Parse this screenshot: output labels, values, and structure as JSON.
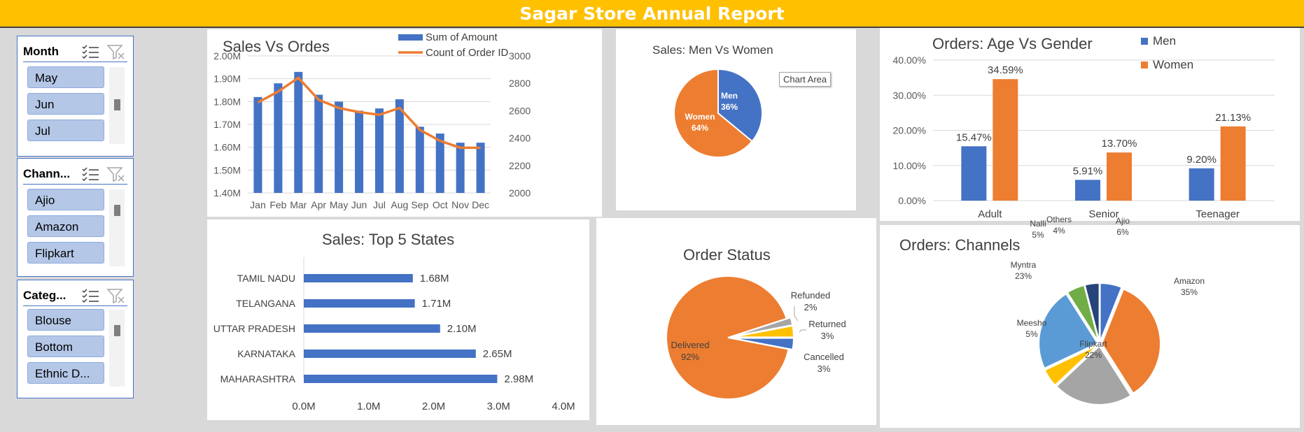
{
  "report_title": "Sagar Store Annual Report",
  "slicers": [
    {
      "label": "Month",
      "items": [
        "May",
        "Jun",
        "Jul"
      ]
    },
    {
      "label": "Chann...",
      "items": [
        "Ajio",
        "Amazon",
        "Flipkart"
      ]
    },
    {
      "label": "Categ...",
      "items": [
        "Blouse",
        "Bottom",
        "Ethnic D..."
      ]
    }
  ],
  "tooltip_text": "Chart Area",
  "colors": {
    "blue": "#4472c4",
    "orange": "#ed7d31",
    "gray": "#a5a5a5",
    "yellow": "#ffc000",
    "lightblue": "#5b9bd5",
    "green": "#70ad47",
    "navy": "#264478",
    "title_bar": "#ffc000"
  },
  "chart_data": [
    {
      "id": "sales_vs_orders",
      "type": "bar+line",
      "title": "Sales Vs Ordes",
      "categories": [
        "Jan",
        "Feb",
        "Mar",
        "Apr",
        "May",
        "Jun",
        "Jul",
        "Aug",
        "Sep",
        "Oct",
        "Nov",
        "Dec"
      ],
      "series": [
        {
          "name": "Sum of Amount",
          "type": "bar",
          "axis": "left",
          "values": [
            1.82,
            1.88,
            1.93,
            1.83,
            1.8,
            1.76,
            1.77,
            1.81,
            1.69,
            1.66,
            1.62,
            1.62
          ]
        },
        {
          "name": "Count of Order ID",
          "type": "line",
          "axis": "right",
          "values": [
            2660,
            2740,
            2840,
            2680,
            2620,
            2590,
            2570,
            2620,
            2460,
            2380,
            2330,
            2330
          ]
        }
      ],
      "left_axis": {
        "min": 1.4,
        "max": 2.0,
        "ticks": [
          "1.40M",
          "1.50M",
          "1.60M",
          "1.70M",
          "1.80M",
          "1.90M",
          "2.00M"
        ]
      },
      "right_axis": {
        "min": 2000,
        "max": 3000,
        "ticks": [
          "2000",
          "2200",
          "2400",
          "2600",
          "2800",
          "3000"
        ]
      },
      "legend": "top"
    },
    {
      "id": "men_vs_women",
      "type": "pie",
      "title": "Sales: Men Vs Women",
      "slices": [
        {
          "label": "Men",
          "value": 36,
          "display": "36%"
        },
        {
          "label": "Women",
          "value": 64,
          "display": "64%"
        }
      ]
    },
    {
      "id": "age_vs_gender",
      "type": "bar",
      "title": "Orders: Age Vs Gender",
      "categories": [
        "Adult",
        "Senior",
        "Teenager"
      ],
      "series": [
        {
          "name": "Men",
          "values": [
            15.47,
            5.91,
            9.2
          ],
          "labels": [
            "15.47%",
            "5.91%",
            "9.20%"
          ]
        },
        {
          "name": "Women",
          "values": [
            34.59,
            13.7,
            21.13
          ],
          "labels": [
            "34.59%",
            "13.70%",
            "21.13%"
          ]
        }
      ],
      "ylim": [
        0,
        40
      ],
      "yticks": [
        "0.00%",
        "10.00%",
        "20.00%",
        "30.00%",
        "40.00%"
      ],
      "legend": "top-right"
    },
    {
      "id": "top_states",
      "type": "bar-horizontal",
      "title": "Sales: Top 5 States",
      "categories": [
        "TAMIL NADU",
        "TELANGANA",
        "UTTAR PRADESH",
        "KARNATAKA",
        "MAHARASHTRA"
      ],
      "values": [
        1.68,
        1.71,
        2.1,
        2.65,
        2.98
      ],
      "labels": [
        "1.68M",
        "1.71M",
        "2.10M",
        "2.65M",
        "2.98M"
      ],
      "xlim": [
        0,
        4
      ],
      "xticks": [
        "0.0M",
        "1.0M",
        "2.0M",
        "3.0M",
        "4.0M"
      ]
    },
    {
      "id": "order_status",
      "type": "pie",
      "title": "Order Status",
      "slices": [
        {
          "label": "Delivered",
          "value": 92,
          "display": "92%"
        },
        {
          "label": "Refunded",
          "value": 2,
          "display": "2%"
        },
        {
          "label": "Returned",
          "value": 3,
          "display": "3%"
        },
        {
          "label": "Cancelled",
          "value": 3,
          "display": "3%"
        }
      ]
    },
    {
      "id": "channels",
      "type": "pie",
      "title": "Orders: Channels",
      "slices": [
        {
          "label": "Ajio",
          "value": 6,
          "display": "6%"
        },
        {
          "label": "Amazon",
          "value": 35,
          "display": "35%"
        },
        {
          "label": "Flipkart",
          "value": 22,
          "display": "22%"
        },
        {
          "label": "Meesho",
          "value": 5,
          "display": "5%"
        },
        {
          "label": "Myntra",
          "value": 23,
          "display": "23%"
        },
        {
          "label": "Nalli",
          "value": 5,
          "display": "5%"
        },
        {
          "label": "Others",
          "value": 4,
          "display": "4%"
        }
      ]
    }
  ]
}
